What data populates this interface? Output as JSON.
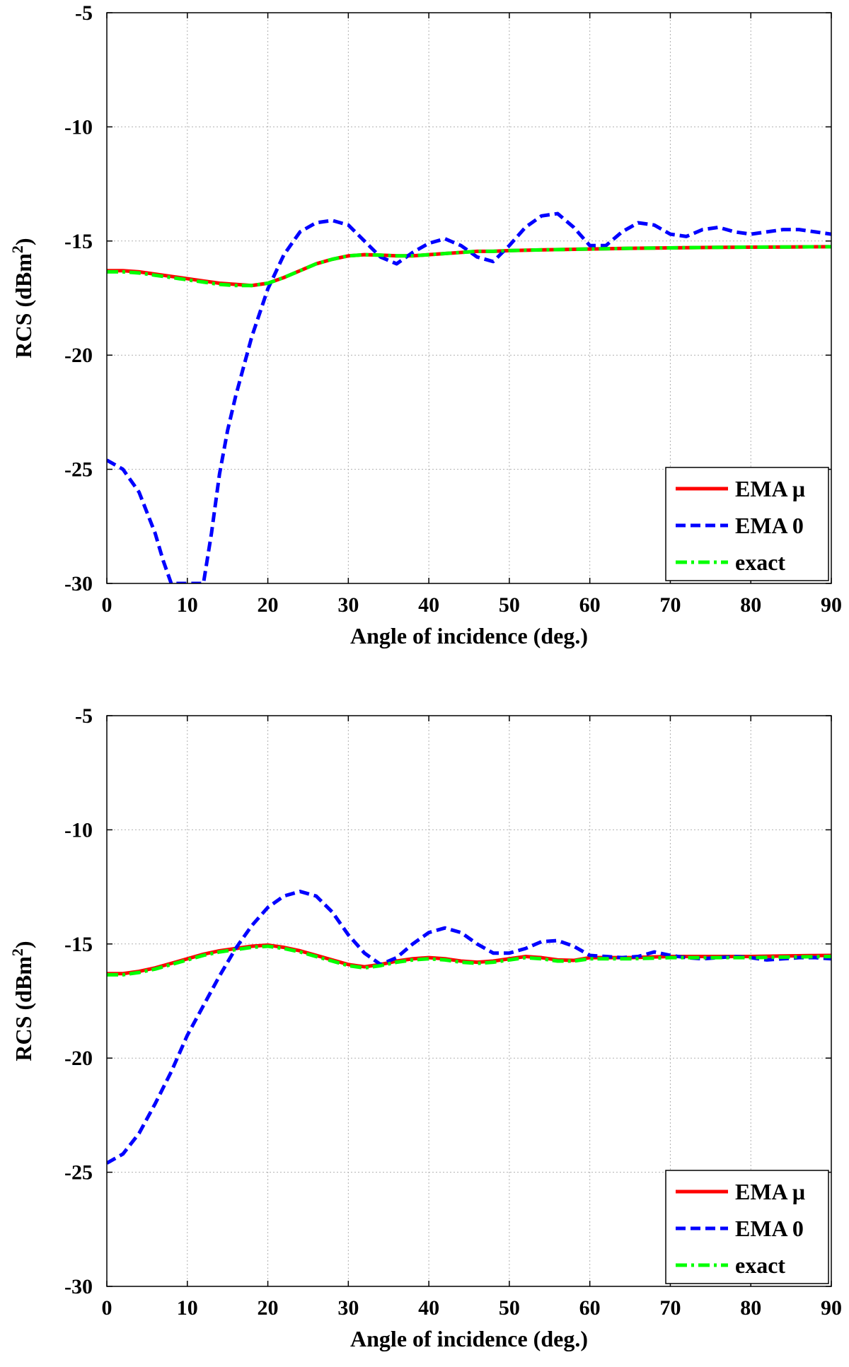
{
  "chart_data": [
    {
      "type": "line",
      "xlabel": "Angle of incidence (deg.)",
      "ylabel_main": "RCS (dBm",
      "ylabel_sup": "2",
      "ylabel_close": ")",
      "xlim": [
        0,
        90
      ],
      "ylim": [
        -30,
        -5
      ],
      "xticks": [
        0,
        10,
        20,
        30,
        40,
        50,
        60,
        70,
        80,
        90
      ],
      "yticks": [
        -5,
        -10,
        -15,
        -20,
        -25,
        -30
      ],
      "grid": true,
      "legend_position": "bottom-right",
      "series": [
        {
          "name": "EMA μ",
          "color": "#ff0000",
          "dash": "solid",
          "x": [
            0,
            2,
            4,
            6,
            8,
            10,
            12,
            14,
            16,
            18,
            20,
            22,
            24,
            26,
            28,
            30,
            32,
            34,
            36,
            38,
            40,
            42,
            44,
            46,
            48,
            50,
            55,
            60,
            65,
            70,
            75,
            80,
            85,
            90
          ],
          "y": [
            -16.3,
            -16.3,
            -16.35,
            -16.45,
            -16.55,
            -16.65,
            -16.75,
            -16.85,
            -16.9,
            -16.95,
            -16.85,
            -16.6,
            -16.3,
            -16.0,
            -15.8,
            -15.65,
            -15.6,
            -15.62,
            -15.65,
            -15.65,
            -15.6,
            -15.55,
            -15.5,
            -15.45,
            -15.45,
            -15.42,
            -15.38,
            -15.35,
            -15.32,
            -15.3,
            -15.28,
            -15.27,
            -15.26,
            -15.25
          ]
        },
        {
          "name": "EMA 0",
          "color": "#0000ff",
          "dash": "dashed",
          "x": [
            0,
            2,
            4,
            6,
            7,
            8,
            12,
            13,
            14,
            15,
            16,
            18,
            20,
            22,
            24,
            26,
            28,
            30,
            32,
            34,
            36,
            38,
            40,
            42,
            44,
            46,
            48,
            50,
            52,
            54,
            56,
            58,
            60,
            62,
            64,
            66,
            68,
            70,
            72,
            74,
            76,
            78,
            80,
            82,
            84,
            86,
            88,
            90
          ],
          "y": [
            -24.6,
            -25.0,
            -26.0,
            -27.8,
            -29.0,
            -30.0,
            -30.0,
            -27.8,
            -25.2,
            -23.3,
            -21.8,
            -19.2,
            -17.1,
            -15.6,
            -14.6,
            -14.2,
            -14.1,
            -14.3,
            -15.0,
            -15.7,
            -16.0,
            -15.5,
            -15.1,
            -14.9,
            -15.2,
            -15.7,
            -15.9,
            -15.2,
            -14.4,
            -13.9,
            -13.8,
            -14.4,
            -15.2,
            -15.2,
            -14.6,
            -14.2,
            -14.3,
            -14.7,
            -14.8,
            -14.5,
            -14.4,
            -14.6,
            -14.7,
            -14.6,
            -14.5,
            -14.5,
            -14.6,
            -14.7
          ]
        },
        {
          "name": "exact",
          "color": "#00ff00",
          "dash": "dashdot",
          "x": [
            0,
            2,
            4,
            6,
            8,
            10,
            12,
            14,
            16,
            18,
            20,
            22,
            24,
            26,
            28,
            30,
            32,
            34,
            36,
            38,
            40,
            42,
            44,
            46,
            48,
            50,
            55,
            60,
            65,
            70,
            75,
            80,
            85,
            90
          ],
          "y": [
            -16.35,
            -16.35,
            -16.4,
            -16.5,
            -16.6,
            -16.7,
            -16.8,
            -16.9,
            -16.95,
            -16.95,
            -16.85,
            -16.6,
            -16.3,
            -16.0,
            -15.8,
            -15.65,
            -15.6,
            -15.62,
            -15.65,
            -15.65,
            -15.6,
            -15.55,
            -15.5,
            -15.45,
            -15.45,
            -15.42,
            -15.38,
            -15.35,
            -15.32,
            -15.3,
            -15.28,
            -15.27,
            -15.26,
            -15.25
          ]
        }
      ]
    },
    {
      "type": "line",
      "xlabel": "Angle of incidence (deg.)",
      "ylabel_main": "RCS (dBm",
      "ylabel_sup": "2",
      "ylabel_close": ")",
      "xlim": [
        0,
        90
      ],
      "ylim": [
        -30,
        -5
      ],
      "xticks": [
        0,
        10,
        20,
        30,
        40,
        50,
        60,
        70,
        80,
        90
      ],
      "yticks": [
        -5,
        -10,
        -15,
        -20,
        -25,
        -30
      ],
      "grid": true,
      "legend_position": "bottom-right",
      "series": [
        {
          "name": "EMA μ",
          "color": "#ff0000",
          "dash": "solid",
          "x": [
            0,
            2,
            4,
            6,
            8,
            10,
            12,
            14,
            16,
            18,
            20,
            22,
            24,
            26,
            28,
            30,
            32,
            34,
            36,
            38,
            40,
            42,
            44,
            46,
            48,
            50,
            52,
            54,
            56,
            58,
            60,
            65,
            70,
            75,
            80,
            85,
            90
          ],
          "y": [
            -16.3,
            -16.3,
            -16.2,
            -16.05,
            -15.85,
            -15.65,
            -15.45,
            -15.3,
            -15.2,
            -15.1,
            -15.05,
            -15.15,
            -15.3,
            -15.5,
            -15.7,
            -15.9,
            -16.0,
            -15.9,
            -15.75,
            -15.65,
            -15.6,
            -15.65,
            -15.75,
            -15.8,
            -15.75,
            -15.65,
            -15.55,
            -15.6,
            -15.7,
            -15.72,
            -15.6,
            -15.6,
            -15.55,
            -15.55,
            -15.55,
            -15.52,
            -15.5
          ]
        },
        {
          "name": "EMA 0",
          "color": "#0000ff",
          "dash": "dashed",
          "x": [
            0,
            2,
            4,
            6,
            8,
            10,
            12,
            14,
            16,
            18,
            20,
            22,
            24,
            26,
            28,
            30,
            32,
            34,
            36,
            38,
            40,
            42,
            44,
            46,
            48,
            50,
            52,
            54,
            56,
            58,
            60,
            62,
            64,
            66,
            68,
            70,
            72,
            74,
            76,
            78,
            80,
            82,
            84,
            86,
            88,
            90
          ],
          "y": [
            -24.6,
            -24.2,
            -23.3,
            -22.0,
            -20.6,
            -19.0,
            -17.7,
            -16.4,
            -15.2,
            -14.2,
            -13.4,
            -12.9,
            -12.7,
            -12.9,
            -13.6,
            -14.6,
            -15.4,
            -15.9,
            -15.6,
            -15.0,
            -14.5,
            -14.3,
            -14.5,
            -15.0,
            -15.4,
            -15.4,
            -15.2,
            -14.9,
            -14.85,
            -15.1,
            -15.5,
            -15.55,
            -15.6,
            -15.55,
            -15.35,
            -15.5,
            -15.6,
            -15.65,
            -15.6,
            -15.55,
            -15.6,
            -15.7,
            -15.65,
            -15.6,
            -15.6,
            -15.65
          ]
        },
        {
          "name": "exact",
          "color": "#00ff00",
          "dash": "dashdot",
          "x": [
            0,
            2,
            4,
            6,
            8,
            10,
            12,
            14,
            16,
            18,
            20,
            22,
            24,
            26,
            28,
            30,
            32,
            34,
            36,
            38,
            40,
            42,
            44,
            46,
            48,
            50,
            52,
            54,
            56,
            58,
            60,
            65,
            70,
            75,
            80,
            85,
            90
          ],
          "y": [
            -16.35,
            -16.35,
            -16.25,
            -16.1,
            -15.9,
            -15.7,
            -15.5,
            -15.35,
            -15.25,
            -15.15,
            -15.1,
            -15.2,
            -15.35,
            -15.55,
            -15.75,
            -15.95,
            -16.05,
            -15.95,
            -15.8,
            -15.7,
            -15.65,
            -15.7,
            -15.8,
            -15.85,
            -15.8,
            -15.7,
            -15.6,
            -15.65,
            -15.75,
            -15.75,
            -15.65,
            -15.65,
            -15.6,
            -15.6,
            -15.6,
            -15.57,
            -15.55
          ]
        }
      ]
    }
  ]
}
